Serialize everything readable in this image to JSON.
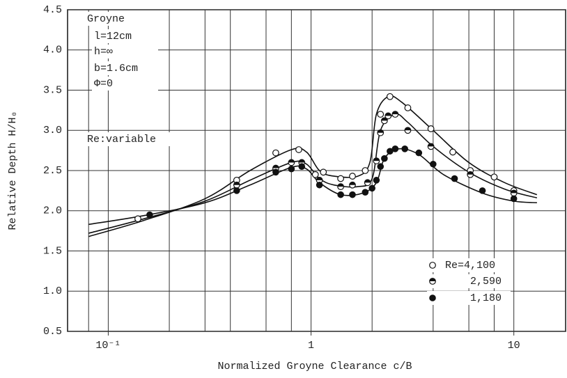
{
  "chart_data": {
    "type": "scatter",
    "xlabel": "Normalized Groyne Clearance  c/B",
    "ylabel": "Relative Depth  H/H₀",
    "xscale": "log",
    "xlim": [
      0.063,
      18
    ],
    "ylim": [
      0.5,
      4.5
    ],
    "xticks": [
      {
        "value": 0.1,
        "label": "10⁻¹"
      },
      1,
      10
    ],
    "xgrid": [
      0.08,
      0.1,
      0.2,
      0.3,
      0.4,
      0.6,
      0.8,
      1,
      2,
      4,
      6,
      8,
      10
    ],
    "yticks": [
      0.5,
      {
        "value": 1,
        "label": "1.0"
      },
      1.5,
      {
        "value": 2,
        "label": "2.0"
      },
      2.5,
      {
        "value": 3,
        "label": "3.0"
      },
      3.5,
      {
        "value": 4,
        "label": "4.0"
      },
      4.5
    ],
    "grid": true,
    "legend": "lower right",
    "annotations": [
      "Groyne",
      "l=12cm",
      "h=∞",
      "b=1.6cm",
      "Φ=0",
      "Re:variable"
    ],
    "series": [
      {
        "name": "Re=4,100",
        "marker": "open",
        "color": "#111",
        "points_x": [
          0.14,
          0.43,
          0.67,
          0.87,
          1.05,
          1.15,
          1.4,
          1.6,
          1.85,
          2.2,
          2.45,
          3.0,
          3.9,
          5.0,
          6.1,
          8.0,
          10
        ],
        "points_y": [
          1.9,
          2.38,
          2.72,
          2.76,
          2.45,
          2.48,
          2.4,
          2.43,
          2.5,
          3.2,
          3.42,
          3.28,
          3.02,
          2.73,
          2.5,
          2.42,
          2.25
        ],
        "curve_x": [
          0.08,
          0.15,
          0.3,
          0.5,
          0.8,
          0.95,
          1.1,
          1.3,
          1.7,
          1.95,
          2.1,
          2.4,
          2.8,
          4,
          6,
          9,
          13
        ],
        "curve_y": [
          1.68,
          1.88,
          2.15,
          2.5,
          2.76,
          2.73,
          2.5,
          2.43,
          2.43,
          2.6,
          3.2,
          3.42,
          3.35,
          3.0,
          2.6,
          2.35,
          2.2
        ]
      },
      {
        "name": "2,590",
        "marker": "half",
        "color": "#111",
        "points_x": [
          0.43,
          0.67,
          0.8,
          0.9,
          1.1,
          1.4,
          1.6,
          1.9,
          2.1,
          2.2,
          2.3,
          2.4,
          2.6,
          3.0,
          3.9,
          6.1,
          10
        ],
        "points_y": [
          2.32,
          2.53,
          2.6,
          2.6,
          2.38,
          2.3,
          2.32,
          2.35,
          2.62,
          2.97,
          3.12,
          3.18,
          3.2,
          3.0,
          2.8,
          2.45,
          2.22
        ],
        "curve_x": [
          0.08,
          0.15,
          0.3,
          0.5,
          0.8,
          0.95,
          1.1,
          1.3,
          1.7,
          2.0,
          2.2,
          2.6,
          3.0,
          4,
          6,
          9,
          13
        ],
        "curve_y": [
          1.72,
          1.9,
          2.12,
          2.38,
          2.6,
          2.58,
          2.4,
          2.32,
          2.3,
          2.4,
          3.0,
          3.2,
          3.1,
          2.8,
          2.48,
          2.27,
          2.16
        ]
      },
      {
        "name": "1,180",
        "marker": "filled",
        "color": "#111",
        "points_x": [
          0.16,
          0.43,
          0.67,
          0.8,
          0.9,
          1.1,
          1.4,
          1.6,
          1.85,
          2.0,
          2.1,
          2.2,
          2.3,
          2.45,
          2.6,
          2.9,
          3.4,
          4.0,
          5.1,
          7.0,
          10
        ],
        "points_y": [
          1.95,
          2.25,
          2.48,
          2.52,
          2.55,
          2.32,
          2.2,
          2.2,
          2.23,
          2.28,
          2.38,
          2.55,
          2.65,
          2.74,
          2.77,
          2.77,
          2.72,
          2.58,
          2.4,
          2.25,
          2.15
        ],
        "curve_x": [
          0.08,
          0.15,
          0.3,
          0.5,
          0.8,
          0.95,
          1.1,
          1.4,
          1.8,
          2.1,
          2.3,
          2.7,
          3.4,
          4.5,
          7,
          10,
          13
        ],
        "curve_y": [
          1.83,
          1.94,
          2.1,
          2.32,
          2.54,
          2.52,
          2.35,
          2.2,
          2.22,
          2.35,
          2.65,
          2.77,
          2.7,
          2.45,
          2.22,
          2.12,
          2.1
        ]
      }
    ]
  }
}
